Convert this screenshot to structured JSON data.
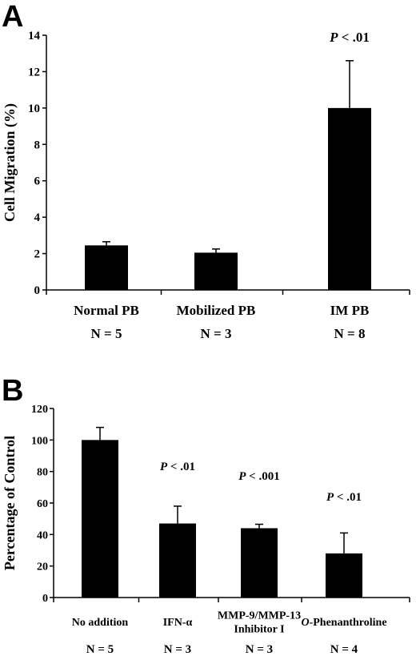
{
  "chart_data": [
    {
      "panel": "A",
      "type": "bar",
      "ylabel": "Cell Migration (%)",
      "xlabel": "",
      "ylim": [
        0,
        14
      ],
      "yticks": [
        0,
        2,
        4,
        6,
        8,
        10,
        12,
        14
      ],
      "categories": [
        "Normal PB",
        "Mobilized PB",
        "IM PB"
      ],
      "category_lines": [
        [
          "Normal PB"
        ],
        [
          "Mobilized PB"
        ],
        [
          "IM PB"
        ]
      ],
      "n_labels": [
        "N = 5",
        "N = 3",
        "N = 8"
      ],
      "values": [
        2.45,
        2.05,
        10.0
      ],
      "errors": [
        0.2,
        0.2,
        2.6
      ],
      "annotations": [
        {
          "category_index": 2,
          "p": "P",
          "rest": " < .01"
        }
      ],
      "grid": false,
      "bar_color": "#000000"
    },
    {
      "panel": "B",
      "type": "bar",
      "ylabel": "Percentage of Control",
      "xlabel": "",
      "ylim": [
        0,
        120
      ],
      "yticks": [
        0,
        20,
        40,
        60,
        80,
        100,
        120
      ],
      "categories": [
        "No addition",
        "IFN-α",
        "MMP-9/MMP-13 Inhibitor I",
        "O-Phenanthroline"
      ],
      "category_lines": [
        [
          "No addition"
        ],
        [
          "IFN-α"
        ],
        [
          "MMP-9/MMP-13",
          "Inhibitor I"
        ],
        [
          "O",
          "-Phenanthroline"
        ]
      ],
      "n_labels": [
        "N = 5",
        "N = 3",
        "N = 3",
        "N = 4"
      ],
      "values": [
        100,
        47,
        44,
        28
      ],
      "errors": [
        8,
        11,
        2.5,
        13
      ],
      "annotations": [
        {
          "category_index": 1,
          "p": "P",
          "rest": " < .01"
        },
        {
          "category_index": 2,
          "p": "P",
          "rest": " < .001"
        },
        {
          "category_index": 3,
          "p": "P",
          "rest": " < .01"
        }
      ],
      "grid": false,
      "bar_color": "#000000"
    }
  ]
}
